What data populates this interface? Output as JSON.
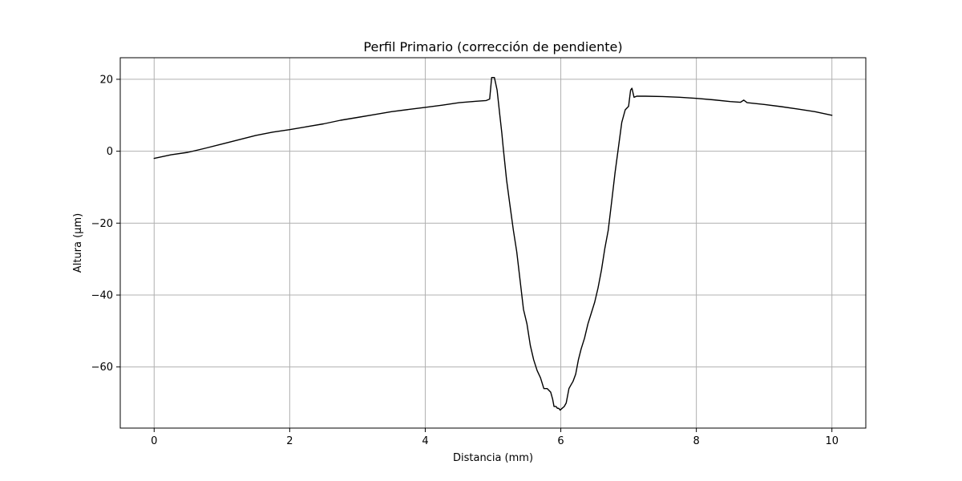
{
  "chart_data": {
    "type": "line",
    "title": "Perfil Primario (corrección de pendiente)",
    "xlabel": "Distancia (mm)",
    "ylabel": "Altura (µm)",
    "xlim": [
      -0.5,
      10.5
    ],
    "ylim": [
      -77,
      26
    ],
    "xticks": [
      0,
      2,
      4,
      6,
      8,
      10
    ],
    "xtick_labels": [
      "0",
      "2",
      "4",
      "6",
      "8",
      "10"
    ],
    "yticks": [
      20,
      0,
      -20,
      -40,
      -60
    ],
    "ytick_labels": [
      "20",
      "0",
      "−20",
      "−40",
      "−60"
    ],
    "grid": true,
    "legend": "none",
    "line_color": "#000000",
    "series": [
      {
        "x": [
          0,
          0.25,
          0.5,
          0.75,
          1.0,
          1.25,
          1.5,
          1.75,
          2.0,
          2.25,
          2.5,
          2.75,
          3.0,
          3.25,
          3.5,
          3.75,
          4.0,
          4.25,
          4.5,
          4.75,
          4.9,
          4.95,
          4.98,
          5.02,
          5.06,
          5.1,
          5.13,
          5.15,
          5.2,
          5.25,
          5.3,
          5.35,
          5.4,
          5.45,
          5.5,
          5.55,
          5.6,
          5.65,
          5.7,
          5.75,
          5.8,
          5.85,
          5.88,
          5.9,
          5.93,
          5.95,
          5.97,
          5.99,
          6.02,
          6.05,
          6.08,
          6.12,
          6.15,
          6.18,
          6.22,
          6.26,
          6.3,
          6.35,
          6.4,
          6.45,
          6.5,
          6.55,
          6.6,
          6.65,
          6.7,
          6.75,
          6.8,
          6.85,
          6.9,
          6.95,
          7.0,
          7.03,
          7.05,
          7.08,
          7.12,
          7.25,
          7.5,
          7.75,
          8.0,
          8.25,
          8.5,
          8.65,
          8.7,
          8.75,
          9.0,
          9.25,
          9.5,
          9.75,
          10.0
        ],
        "y": [
          -2,
          -1,
          -0.3,
          0.8,
          2,
          3.2,
          4.4,
          5.3,
          6.0,
          6.8,
          7.6,
          8.6,
          9.4,
          10.2,
          11.0,
          11.6,
          12.2,
          12.8,
          13.5,
          13.9,
          14.1,
          14.5,
          20.5,
          20.5,
          17,
          10,
          5,
          1,
          -8,
          -15,
          -22,
          -28,
          -36,
          -44,
          -48,
          -54,
          -58,
          -61,
          -63,
          -66,
          -66,
          -67,
          -69,
          -71,
          -71,
          -71.5,
          -71.5,
          -72,
          -71.5,
          -71,
          -70,
          -66,
          -65,
          -64,
          -62,
          -58,
          -55,
          -52,
          -48,
          -45,
          -42,
          -38,
          -33,
          -27,
          -22,
          -14,
          -6,
          1,
          8,
          11.5,
          12.5,
          17,
          17.5,
          15,
          15.3,
          15.3,
          15.2,
          15.0,
          14.7,
          14.3,
          13.8,
          13.6,
          14.2,
          13.5,
          13.0,
          12.4,
          11.7,
          11.0,
          10.0
        ]
      }
    ]
  }
}
